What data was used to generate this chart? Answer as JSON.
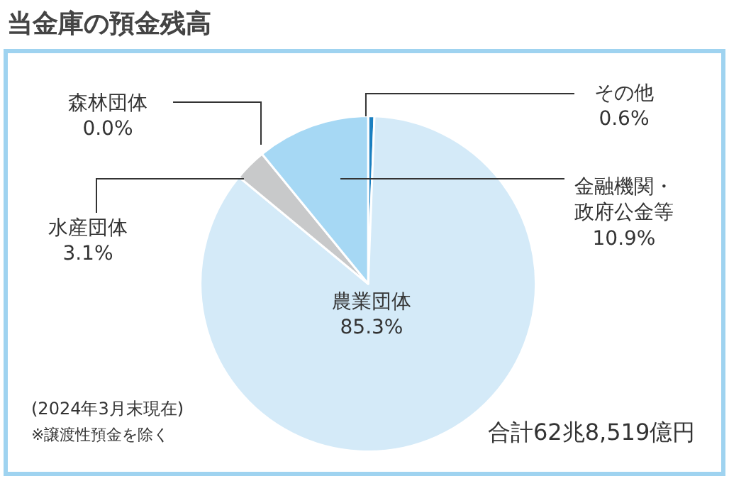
{
  "chart_data": {
    "type": "pie",
    "title": "当金庫の預金残高",
    "categories": [
      "その他",
      "農業団体",
      "水産団体",
      "森林団体",
      "金融機関・政府公金等"
    ],
    "values": [
      0.6,
      85.3,
      3.1,
      0.0,
      10.9
    ],
    "colors": [
      "#1a7fc0",
      "#d4eaf8",
      "#c8c9ca",
      "#e0e0e0",
      "#a6d8f4"
    ],
    "value_labels": [
      "0.6%",
      "85.3%",
      "3.1%",
      "0.0%",
      "10.9%"
    ],
    "annotations": [
      "(2024年3月末現在)",
      "※譲渡性預金を除く",
      "合計62兆8,519億円"
    ]
  }
}
